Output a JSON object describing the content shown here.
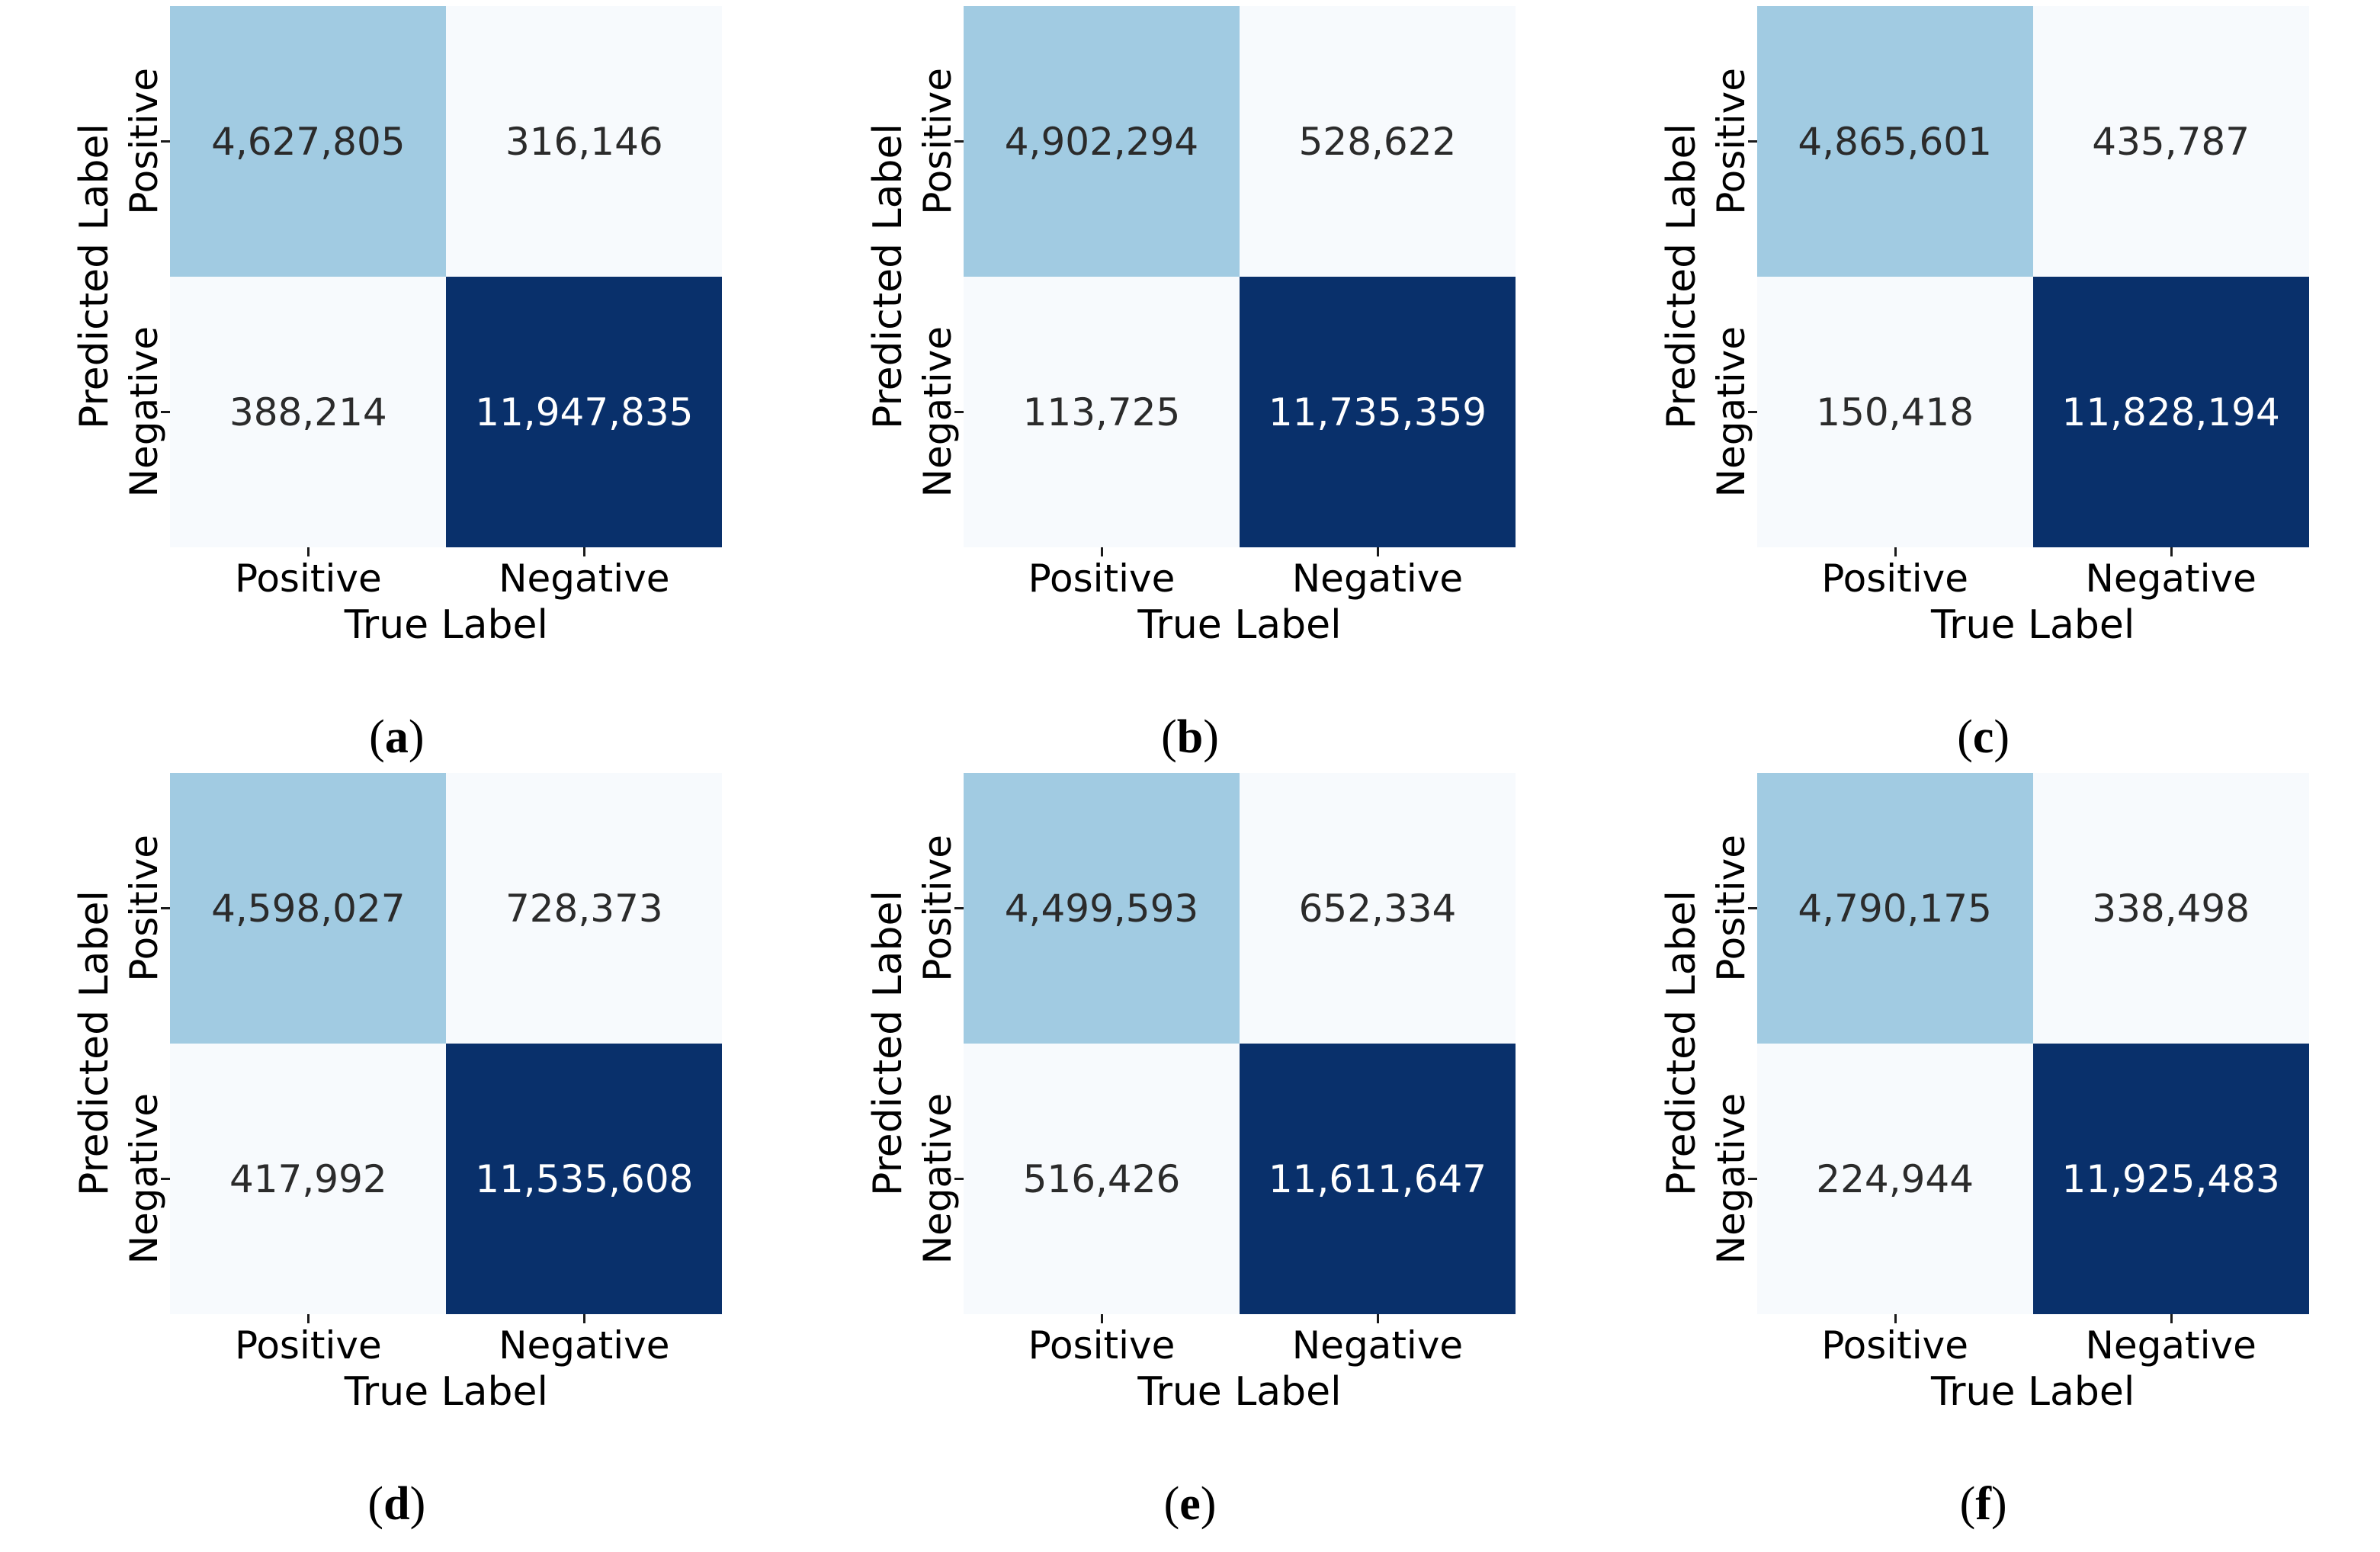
{
  "figure": {
    "x_axis_label": "True Label",
    "y_axis_label": "Predicted Label",
    "x_ticks": [
      "Positive",
      "Negative"
    ],
    "y_ticks": [
      "Positive",
      "Negative"
    ],
    "caption_open": "(",
    "caption_close": ")",
    "colors": {
      "cell_high": "#09306b",
      "cell_mid": "#a1cbe2",
      "cell_low": "#f7fafd",
      "text_dark": "#2b2b2b",
      "text_light": "#ffffff"
    }
  },
  "chart_data": [
    {
      "type": "heatmap",
      "panel": "(a)",
      "panel_letter": "a",
      "rows": [
        "Positive",
        "Negative"
      ],
      "cols": [
        "Positive",
        "Negative"
      ],
      "values": [
        [
          4627805,
          316146
        ],
        [
          388214,
          11947835
        ]
      ],
      "display": [
        [
          "4,627,805",
          "316,146"
        ],
        [
          "388,214",
          "11,947,835"
        ]
      ],
      "xlabel": "True Label",
      "ylabel": "Predicted Label",
      "colormap": "Blues",
      "legend": "none",
      "grid": false
    },
    {
      "type": "heatmap",
      "panel": "(b)",
      "panel_letter": "b",
      "rows": [
        "Positive",
        "Negative"
      ],
      "cols": [
        "Positive",
        "Negative"
      ],
      "values": [
        [
          4902294,
          528622
        ],
        [
          113725,
          11735359
        ]
      ],
      "display": [
        [
          "4,902,294",
          "528,622"
        ],
        [
          "113,725",
          "11,735,359"
        ]
      ],
      "xlabel": "True Label",
      "ylabel": "Predicted Label",
      "colormap": "Blues",
      "legend": "none",
      "grid": false
    },
    {
      "type": "heatmap",
      "panel": "(c)",
      "panel_letter": "c",
      "rows": [
        "Positive",
        "Negative"
      ],
      "cols": [
        "Positive",
        "Negative"
      ],
      "values": [
        [
          4865601,
          435787
        ],
        [
          150418,
          11828194
        ]
      ],
      "display": [
        [
          "4,865,601",
          "435,787"
        ],
        [
          "150,418",
          "11,828,194"
        ]
      ],
      "xlabel": "True Label",
      "ylabel": "Predicted Label",
      "colormap": "Blues",
      "legend": "none",
      "grid": false
    },
    {
      "type": "heatmap",
      "panel": "(d)",
      "panel_letter": "d",
      "rows": [
        "Positive",
        "Negative"
      ],
      "cols": [
        "Positive",
        "Negative"
      ],
      "values": [
        [
          4598027,
          728373
        ],
        [
          417992,
          11535608
        ]
      ],
      "display": [
        [
          "4,598,027",
          "728,373"
        ],
        [
          "417,992",
          "11,535,608"
        ]
      ],
      "xlabel": "True Label",
      "ylabel": "Predicted Label",
      "colormap": "Blues",
      "legend": "none",
      "grid": false
    },
    {
      "type": "heatmap",
      "panel": "(e)",
      "panel_letter": "e",
      "rows": [
        "Positive",
        "Negative"
      ],
      "cols": [
        "Positive",
        "Negative"
      ],
      "values": [
        [
          4499593,
          652334
        ],
        [
          516426,
          11611647
        ]
      ],
      "display": [
        [
          "4,499,593",
          "652,334"
        ],
        [
          "516,426",
          "11,611,647"
        ]
      ],
      "xlabel": "True Label",
      "ylabel": "Predicted Label",
      "colormap": "Blues",
      "legend": "none",
      "grid": false
    },
    {
      "type": "heatmap",
      "panel": "(f)",
      "panel_letter": "f",
      "rows": [
        "Positive",
        "Negative"
      ],
      "cols": [
        "Positive",
        "Negative"
      ],
      "values": [
        [
          4790175,
          338498
        ],
        [
          224944,
          11925483
        ]
      ],
      "display": [
        [
          "4,790,175",
          "338,498"
        ],
        [
          "224,944",
          "11,925,483"
        ]
      ],
      "xlabel": "True Label",
      "ylabel": "Predicted Label",
      "colormap": "Blues",
      "legend": "none",
      "grid": false
    }
  ]
}
